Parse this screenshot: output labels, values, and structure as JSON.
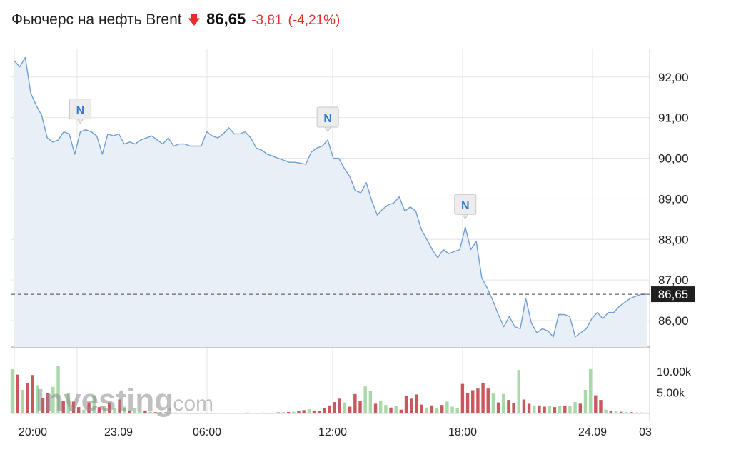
{
  "header": {
    "title": "Фьючерс на нефть Brent",
    "direction_icon": "arrow-down-icon",
    "price": "86,65",
    "change": "-3,81",
    "change_pct": "(-4,21%)"
  },
  "colors": {
    "line": "#6f9fd4",
    "area": "#e9eff7",
    "grid": "#e6e6e6",
    "down": "#e0302a",
    "vol_up": "#a9d8a9",
    "vol_down": "#c9585e",
    "marker_text": "#3b78c9"
  },
  "watermark": {
    "brand": "Investing",
    "suffix": ".com"
  },
  "chart_data": {
    "type": "line",
    "xlabels": [
      "20:00",
      "23.09",
      "06:00",
      "12:00",
      "18:00",
      "24.09",
      "03"
    ],
    "y_ticks": [
      "92,00",
      "91,00",
      "90,00",
      "89,00",
      "88,00",
      "87,00",
      "86,00"
    ],
    "ylim": [
      85.35,
      92.7
    ],
    "current_value": 86.65,
    "current_label": "86,65",
    "price_series": [
      92.4,
      92.25,
      92.48,
      91.6,
      91.3,
      91.05,
      90.5,
      90.4,
      90.45,
      90.65,
      90.6,
      90.1,
      90.65,
      90.7,
      90.65,
      90.55,
      90.1,
      90.6,
      90.55,
      90.6,
      90.35,
      90.4,
      90.35,
      90.45,
      90.5,
      90.55,
      90.45,
      90.35,
      90.5,
      90.3,
      90.35,
      90.35,
      90.3,
      90.3,
      90.3,
      90.65,
      90.55,
      90.5,
      90.6,
      90.75,
      90.6,
      90.6,
      90.65,
      90.5,
      90.25,
      90.2,
      90.1,
      90.05,
      90.0,
      89.95,
      89.9,
      89.9,
      89.88,
      89.85,
      90.15,
      90.25,
      90.3,
      90.45,
      90.0,
      90.0,
      89.75,
      89.55,
      89.2,
      89.15,
      89.4,
      88.95,
      88.6,
      88.75,
      88.85,
      88.9,
      89.05,
      88.7,
      88.8,
      88.7,
      88.25,
      88.0,
      87.75,
      87.55,
      87.75,
      87.65,
      87.7,
      87.75,
      88.3,
      87.75,
      87.95,
      87.05,
      86.8,
      86.5,
      86.15,
      85.85,
      86.1,
      85.85,
      85.8,
      86.55,
      85.95,
      85.7,
      85.8,
      85.75,
      85.6,
      86.15,
      86.15,
      86.1,
      85.6,
      85.7,
      85.8,
      86.05,
      86.2,
      86.05,
      86.2,
      86.2,
      86.35,
      86.45,
      86.55,
      86.6,
      86.65,
      86.65
    ],
    "news_markers": [
      {
        "label": "N",
        "index": 12
      },
      {
        "label": "N",
        "index": 57
      },
      {
        "label": "N",
        "index": 82
      }
    ],
    "volume_ticks": [
      "10.00k",
      "5.00k"
    ],
    "volume_max": 11000,
    "volume_series": [
      {
        "v": 10500,
        "up": true
      },
      {
        "v": 9200,
        "up": false
      },
      {
        "v": 5600,
        "up": true
      },
      {
        "v": 7200,
        "up": false
      },
      {
        "v": 9100,
        "up": false
      },
      {
        "v": 6700,
        "up": true
      },
      {
        "v": 3600,
        "up": false
      },
      {
        "v": 4800,
        "up": false
      },
      {
        "v": 6300,
        "up": true
      },
      {
        "v": 11200,
        "up": true
      },
      {
        "v": 3000,
        "up": false
      },
      {
        "v": 4800,
        "up": true
      },
      {
        "v": 2800,
        "up": false
      },
      {
        "v": 1500,
        "up": false
      },
      {
        "v": 900,
        "up": true
      },
      {
        "v": 2600,
        "up": false
      },
      {
        "v": 4300,
        "up": true
      },
      {
        "v": 1500,
        "up": false
      },
      {
        "v": 1800,
        "up": true
      },
      {
        "v": 2600,
        "up": false
      },
      {
        "v": 1200,
        "up": true
      },
      {
        "v": 3300,
        "up": false
      },
      {
        "v": 1600,
        "up": true
      },
      {
        "v": 700,
        "up": false
      },
      {
        "v": 1200,
        "up": true
      },
      {
        "v": 600,
        "up": true
      },
      {
        "v": 700,
        "up": false
      },
      {
        "v": 400,
        "up": true
      },
      {
        "v": 300,
        "up": false
      },
      {
        "v": 300,
        "up": true
      },
      {
        "v": 250,
        "up": false
      },
      {
        "v": 250,
        "up": true
      },
      {
        "v": 200,
        "up": false
      },
      {
        "v": 200,
        "up": true
      },
      {
        "v": 150,
        "up": false
      },
      {
        "v": 150,
        "up": true
      },
      {
        "v": 150,
        "up": false
      },
      {
        "v": 200,
        "up": true
      },
      {
        "v": 150,
        "up": false
      },
      {
        "v": 150,
        "up": true
      },
      {
        "v": 150,
        "up": false
      },
      {
        "v": 150,
        "up": true
      },
      {
        "v": 150,
        "up": false
      },
      {
        "v": 150,
        "up": true
      },
      {
        "v": 150,
        "up": false
      },
      {
        "v": 150,
        "up": true
      },
      {
        "v": 200,
        "up": false
      },
      {
        "v": 150,
        "up": true
      },
      {
        "v": 150,
        "up": false
      },
      {
        "v": 200,
        "up": true
      },
      {
        "v": 150,
        "up": false
      },
      {
        "v": 200,
        "up": true
      },
      {
        "v": 250,
        "up": false
      },
      {
        "v": 300,
        "up": true
      },
      {
        "v": 350,
        "up": false
      },
      {
        "v": 400,
        "up": true
      },
      {
        "v": 600,
        "up": false
      },
      {
        "v": 800,
        "up": false
      },
      {
        "v": 1000,
        "up": true
      },
      {
        "v": 700,
        "up": false
      },
      {
        "v": 600,
        "up": false
      },
      {
        "v": 1300,
        "up": false
      },
      {
        "v": 1900,
        "up": false
      },
      {
        "v": 2700,
        "up": false
      },
      {
        "v": 3500,
        "up": false
      },
      {
        "v": 2600,
        "up": true
      },
      {
        "v": 1600,
        "up": false
      },
      {
        "v": 4600,
        "up": false
      },
      {
        "v": 3000,
        "up": false
      },
      {
        "v": 6400,
        "up": true
      },
      {
        "v": 5400,
        "up": true
      },
      {
        "v": 2300,
        "up": false
      },
      {
        "v": 3000,
        "up": true
      },
      {
        "v": 2000,
        "up": true
      },
      {
        "v": 1400,
        "up": false
      },
      {
        "v": 1800,
        "up": true
      },
      {
        "v": 900,
        "up": false
      },
      {
        "v": 4200,
        "up": false
      },
      {
        "v": 3500,
        "up": false
      },
      {
        "v": 4500,
        "up": false
      },
      {
        "v": 2100,
        "up": false
      },
      {
        "v": 1400,
        "up": true
      },
      {
        "v": 1900,
        "up": false
      },
      {
        "v": 1200,
        "up": true
      },
      {
        "v": 2000,
        "up": false
      },
      {
        "v": 2800,
        "up": true
      },
      {
        "v": 1600,
        "up": true
      },
      {
        "v": 1200,
        "up": true
      },
      {
        "v": 7000,
        "up": false
      },
      {
        "v": 4800,
        "up": false
      },
      {
        "v": 5500,
        "up": false
      },
      {
        "v": 5900,
        "up": false
      },
      {
        "v": 7200,
        "up": false
      },
      {
        "v": 5900,
        "up": false
      },
      {
        "v": 4700,
        "up": true
      },
      {
        "v": 2600,
        "up": false
      },
      {
        "v": 4600,
        "up": true
      },
      {
        "v": 3200,
        "up": false
      },
      {
        "v": 2400,
        "up": false
      },
      {
        "v": 10300,
        "up": true
      },
      {
        "v": 3300,
        "up": false
      },
      {
        "v": 2300,
        "up": false
      },
      {
        "v": 1900,
        "up": true
      },
      {
        "v": 1900,
        "up": false
      },
      {
        "v": 1600,
        "up": false
      },
      {
        "v": 1700,
        "up": true
      },
      {
        "v": 1500,
        "up": false
      },
      {
        "v": 1800,
        "up": true
      },
      {
        "v": 1700,
        "up": false
      },
      {
        "v": 1700,
        "up": true
      },
      {
        "v": 2700,
        "up": true
      },
      {
        "v": 2300,
        "up": false
      },
      {
        "v": 5600,
        "up": true
      },
      {
        "v": 10500,
        "up": true
      },
      {
        "v": 4300,
        "up": false
      },
      {
        "v": 3200,
        "up": false
      },
      {
        "v": 900,
        "up": true
      },
      {
        "v": 700,
        "up": false
      },
      {
        "v": 500,
        "up": true
      },
      {
        "v": 400,
        "up": false
      },
      {
        "v": 350,
        "up": true
      },
      {
        "v": 300,
        "up": false
      },
      {
        "v": 250,
        "up": true
      },
      {
        "v": 200,
        "up": false
      },
      {
        "v": 200,
        "up": true
      }
    ]
  }
}
